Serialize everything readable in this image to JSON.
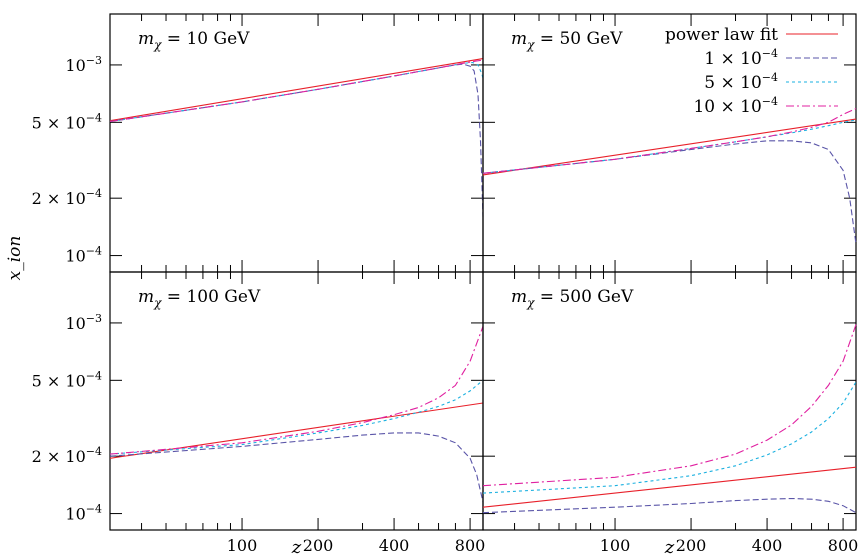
{
  "chart_data": {
    "type": "line",
    "xlabel": "z",
    "ylabel": "x_ion",
    "xscale": "log",
    "yscale": "log",
    "xlim": [
      30,
      900
    ],
    "ylim": [
      8.2e-05,
      0.00185
    ],
    "xticks": [
      100,
      200,
      400,
      800
    ],
    "yticks": [
      {
        "value": 0.0001,
        "mantissa": "",
        "exponent": "−4"
      },
      {
        "value": 0.0002,
        "mantissa": "2",
        "exponent": "−4"
      },
      {
        "value": 0.0005,
        "mantissa": "5",
        "exponent": "−4"
      },
      {
        "value": 0.001,
        "mantissa": "",
        "exponent": "−3"
      }
    ],
    "legend": {
      "placement": "top-right",
      "entries": [
        {
          "key": "fit",
          "label": "power law fit",
          "color": "#e8202a"
        },
        {
          "key": "s1",
          "mantissa": "1",
          "exponent": "−4",
          "color": "#5a55a8"
        },
        {
          "key": "s5",
          "mantissa": "5",
          "exponent": "−4",
          "color": "#1ab0e0"
        },
        {
          "key": "s10",
          "mantissa": "10",
          "exponent": "−4",
          "color": "#e020a0"
        }
      ]
    },
    "panels": [
      {
        "mass": "10 GeV",
        "series": [
          {
            "key": "fit",
            "x": [
              30,
              900
            ],
            "y": [
              0.00051,
              0.00108
            ]
          },
          {
            "key": "s1",
            "x": [
              30,
              100,
              200,
              400,
              600,
              700,
              750,
              800,
              830,
              860,
              880,
              900
            ],
            "y": [
              0.000505,
              0.00064,
              0.000745,
              0.000875,
              0.000965,
              0.001,
              0.00101,
              0.000985,
              0.00093,
              0.0007,
              0.0004,
              0.00016
            ]
          },
          {
            "key": "s5",
            "x": [
              30,
              100,
              200,
              400,
              600,
              750,
              820,
              860,
              890,
              900
            ],
            "y": [
              0.000505,
              0.00064,
              0.000745,
              0.000875,
              0.000965,
              0.00102,
              0.00103,
              0.001,
              0.0009,
              0.00085
            ]
          },
          {
            "key": "s10",
            "x": [
              30,
              100,
              200,
              400,
              600,
              750,
              850,
              900
            ],
            "y": [
              0.000505,
              0.00064,
              0.000745,
              0.000875,
              0.000965,
              0.00102,
              0.00105,
              0.00106
            ]
          }
        ]
      },
      {
        "mass": "50 GeV",
        "series": [
          {
            "key": "fit",
            "x": [
              30,
              900
            ],
            "y": [
              0.000265,
              0.00052
            ]
          },
          {
            "key": "s1",
            "x": [
              30,
              100,
              200,
              300,
              400,
              500,
              600,
              700,
              800,
              850,
              900
            ],
            "y": [
              0.00027,
              0.00032,
              0.00036,
              0.000385,
              0.0004,
              0.0004,
              0.00039,
              0.00036,
              0.00028,
              0.0002,
              0.000115
            ]
          },
          {
            "key": "s5",
            "x": [
              30,
              100,
              200,
              300,
              400,
              500,
              600,
              700,
              800,
              900
            ],
            "y": [
              0.00027,
              0.00032,
              0.000365,
              0.000395,
              0.00042,
              0.00044,
              0.00046,
              0.00048,
              0.0005,
              0.000515
            ]
          },
          {
            "key": "s10",
            "x": [
              30,
              100,
              200,
              300,
              400,
              500,
              600,
              700,
              800,
              900
            ],
            "y": [
              0.00027,
              0.00032,
              0.000365,
              0.000395,
              0.00042,
              0.000445,
              0.00047,
              0.0005,
              0.00055,
              0.00059
            ]
          }
        ]
      },
      {
        "mass": "100 GeV",
        "series": [
          {
            "key": "fit",
            "x": [
              30,
              900
            ],
            "y": [
              0.000195,
              0.00038
            ]
          },
          {
            "key": "s1",
            "x": [
              30,
              100,
              200,
              300,
              400,
              500,
              600,
              700,
              800,
              850,
              900
            ],
            "y": [
              0.0002,
              0.000225,
              0.000245,
              0.000258,
              0.000265,
              0.000265,
              0.000255,
              0.000235,
              0.000195,
              0.00016,
              0.000115
            ]
          },
          {
            "key": "s5",
            "x": [
              30,
              100,
              200,
              300,
              400,
              500,
              600,
              700,
              800,
              900
            ],
            "y": [
              0.000205,
              0.00023,
              0.000265,
              0.00029,
              0.000315,
              0.00034,
              0.000365,
              0.000395,
              0.00044,
              0.0005
            ]
          },
          {
            "key": "s10",
            "x": [
              30,
              100,
              200,
              300,
              400,
              500,
              600,
              700,
              800,
              900
            ],
            "y": [
              0.000205,
              0.000235,
              0.00027,
              0.0003,
              0.00033,
              0.00036,
              0.000405,
              0.00047,
              0.00063,
              0.00096
            ]
          }
        ]
      },
      {
        "mass": "500 GeV",
        "series": [
          {
            "key": "fit",
            "x": [
              30,
              900
            ],
            "y": [
              0.000108,
              0.000175
            ]
          },
          {
            "key": "s1",
            "x": [
              30,
              100,
              200,
              300,
              400,
              500,
              600,
              700,
              800,
              900
            ],
            "y": [
              0.000101,
              0.000108,
              0.000113,
              0.000117,
              0.000119,
              0.00012,
              0.000119,
              0.000116,
              0.00011,
              0.000101
            ]
          },
          {
            "key": "s5",
            "x": [
              30,
              100,
              200,
              300,
              400,
              500,
              600,
              700,
              800,
              900
            ],
            "y": [
              0.000128,
              0.00014,
              0.000158,
              0.000178,
              0.000203,
              0.000232,
              0.000268,
              0.000315,
              0.00038,
              0.00049
            ]
          },
          {
            "key": "s10",
            "x": [
              30,
              100,
              200,
              300,
              400,
              500,
              600,
              700,
              800,
              900
            ],
            "y": [
              0.00014,
              0.000155,
              0.000178,
              0.000205,
              0.000243,
              0.000292,
              0.000365,
              0.00047,
              0.00063,
              0.00098
            ]
          }
        ]
      }
    ]
  }
}
